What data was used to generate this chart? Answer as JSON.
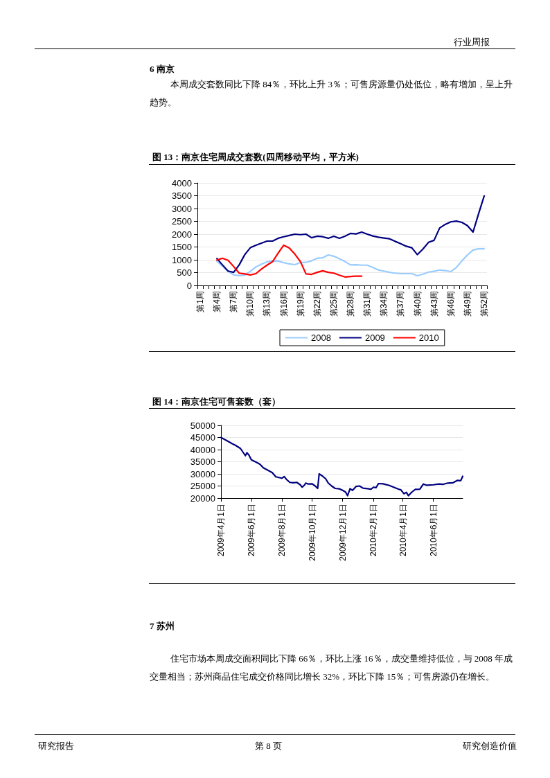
{
  "chart_data": [
    {
      "type": "line",
      "title": "图 13：南京住宅周成交套数(四周移动平均，平方米)",
      "annotations": [
        "行业周报",
        "6 南京",
        "本周成交套数同比下降 84％，环比上升 3％；可售房源量仍处低位，略有增加，呈上升趋势。"
      ],
      "categories": [
        "第1周",
        null,
        null,
        "第4周",
        null,
        null,
        "第7周",
        null,
        null,
        "第10周",
        null,
        null,
        "第13周",
        null,
        null,
        "第16周",
        null,
        null,
        "第19周",
        null,
        null,
        "第22周",
        null,
        null,
        "第25周",
        null,
        null,
        "第28周",
        null,
        null,
        "第31周",
        null,
        null,
        "第34周",
        null,
        null,
        "第37周",
        null,
        null,
        "第40周",
        null,
        null,
        "第43周",
        null,
        null,
        "第46周",
        null,
        null,
        "第49周",
        null,
        null,
        "第52周"
      ],
      "series": [
        {
          "name": "2008",
          "color": "#99ccff",
          "values": [
            null,
            null,
            null,
            950,
            750,
            550,
            410,
            380,
            400,
            550,
            720,
            830,
            920,
            950,
            950,
            890,
            840,
            810,
            890,
            900,
            960,
            1060,
            1080,
            1190,
            1140,
            1040,
            930,
            800,
            810,
            790,
            790,
            700,
            600,
            560,
            510,
            480,
            460,
            460,
            460,
            380,
            440,
            520,
            550,
            600,
            580,
            540,
            700,
            960,
            1190,
            1380,
            1430,
            1430
          ]
        },
        {
          "name": "2009",
          "color": "#000080",
          "values": [
            null,
            null,
            null,
            1050,
            800,
            560,
            510,
            800,
            1200,
            1470,
            1570,
            1650,
            1730,
            1730,
            1840,
            1900,
            1950,
            2000,
            1980,
            2000,
            1860,
            1920,
            1900,
            1840,
            1920,
            1840,
            1920,
            2030,
            2010,
            2080,
            2000,
            1930,
            1880,
            1850,
            1820,
            1720,
            1630,
            1530,
            1470,
            1200,
            1420,
            1680,
            1760,
            2240,
            2380,
            2480,
            2510,
            2460,
            2330,
            2080,
            2800,
            3490
          ]
        },
        {
          "name": "2010",
          "color": "#ff0000",
          "values": [
            null,
            null,
            null,
            990,
            1060,
            980,
            740,
            480,
            450,
            410,
            460,
            640,
            790,
            930,
            1260,
            1570,
            1460,
            1220,
            930,
            450,
            430,
            510,
            570,
            510,
            480,
            400,
            330,
            350,
            360,
            360,
            null,
            null,
            null,
            null,
            null,
            null,
            null,
            null,
            null,
            null,
            null,
            null,
            null,
            null,
            null,
            null,
            null,
            null,
            null,
            null,
            null,
            null
          ]
        }
      ],
      "ylim": [
        0,
        4000
      ],
      "yticks": [
        0,
        500,
        1000,
        1500,
        2000,
        2500,
        3000,
        3500,
        4000
      ],
      "grid": "y",
      "legend": "bottom",
      "marker": "none",
      "line_style": "solid"
    },
    {
      "type": "line",
      "title": "图 14：南京住宅可售套数（套）",
      "annotations": [
        "7 苏州",
        "住宅市场本周成交面积同比下降 66％，环比上涨 16％，成交量维持低位，与 2008 年成交量相当；苏州商品住宅成交价格同比增长 32%，环比下降 15％；可售房源仍在增长。",
        "研究报告",
        "第 8 页",
        "研究创造价值"
      ],
      "series": [
        {
          "color": "#000080",
          "x": [
            "2009-04-01",
            "2009-04-12",
            "2009-04-23",
            "2009-04-30",
            "2009-05-10",
            "2009-05-20",
            "2009-05-23",
            "2009-05-27",
            "2009-06-01",
            "2009-06-11",
            "2009-06-18",
            "2009-06-25",
            "2009-07-04",
            "2009-07-13",
            "2009-07-20",
            "2009-08-01",
            "2009-08-06",
            "2009-08-10",
            "2009-08-17",
            "2009-08-24",
            "2009-08-31",
            "2009-09-07",
            "2009-09-11",
            "2009-09-16",
            "2009-09-18",
            "2009-09-23",
            "2009-10-01",
            "2009-10-07",
            "2009-10-12",
            "2009-10-15",
            "2009-10-21",
            "2009-10-28",
            "2009-11-02",
            "2009-11-09",
            "2009-11-16",
            "2009-11-25",
            "2009-12-01",
            "2009-12-07",
            "2009-12-11",
            "2009-12-16",
            "2009-12-21",
            "2009-12-28",
            "2010-01-04",
            "2010-01-11",
            "2010-01-20",
            "2010-01-27",
            "2010-02-01",
            "2010-02-06",
            "2010-02-11",
            "2010-02-20",
            "2010-03-04",
            "2010-03-16",
            "2010-03-23",
            "2010-03-28",
            "2010-04-03",
            "2010-04-08",
            "2010-04-12",
            "2010-04-19",
            "2010-04-26",
            "2010-05-05",
            "2010-05-12",
            "2010-05-19",
            "2010-06-01",
            "2010-06-12",
            "2010-06-21",
            "2010-06-30",
            "2010-07-10",
            "2010-07-19",
            "2010-07-26",
            "2010-07-30"
          ],
          "values": [
            45000,
            43800,
            42500,
            41800,
            40500,
            37500,
            38700,
            37800,
            35800,
            34800,
            34000,
            32500,
            31500,
            30500,
            28800,
            28200,
            28900,
            27800,
            26500,
            26300,
            26500,
            25500,
            24500,
            25500,
            26200,
            25800,
            25900,
            25000,
            24000,
            30000,
            29200,
            28000,
            26300,
            25000,
            24000,
            23800,
            23200,
            22500,
            21000,
            23900,
            23200,
            24800,
            25000,
            24100,
            23900,
            23700,
            24500,
            24300,
            26000,
            25900,
            25300,
            24300,
            23700,
            23400,
            21800,
            22400,
            21000,
            22500,
            23600,
            23700,
            25800,
            25300,
            25500,
            25800,
            25700,
            26200,
            26300,
            27300,
            27200,
            29000
          ]
        }
      ],
      "xlim": [
        "2009-04-01",
        "2010-07-30"
      ],
      "xticks": [
        {
          "value": "2009-04-01",
          "label": "2009年4月1日"
        },
        {
          "value": "2009-06-01",
          "label": "2009年6月1日"
        },
        {
          "value": "2009-08-01",
          "label": "2009年8月1日"
        },
        {
          "value": "2009-10-01",
          "label": "2009年10月1日"
        },
        {
          "value": "2009-12-01",
          "label": "2009年12月1日"
        },
        {
          "value": "2010-02-01",
          "label": "2010年2月1日"
        },
        {
          "value": "2010-04-01",
          "label": "2010年4月1日"
        },
        {
          "value": "2010-06-01",
          "label": "2010年6月1日"
        }
      ],
      "ylim": [
        20000,
        50000
      ],
      "yticks": [
        20000,
        25000,
        30000,
        35000,
        40000,
        45000,
        50000
      ],
      "grid": "y",
      "marker": "none",
      "line_style": "solid"
    }
  ]
}
